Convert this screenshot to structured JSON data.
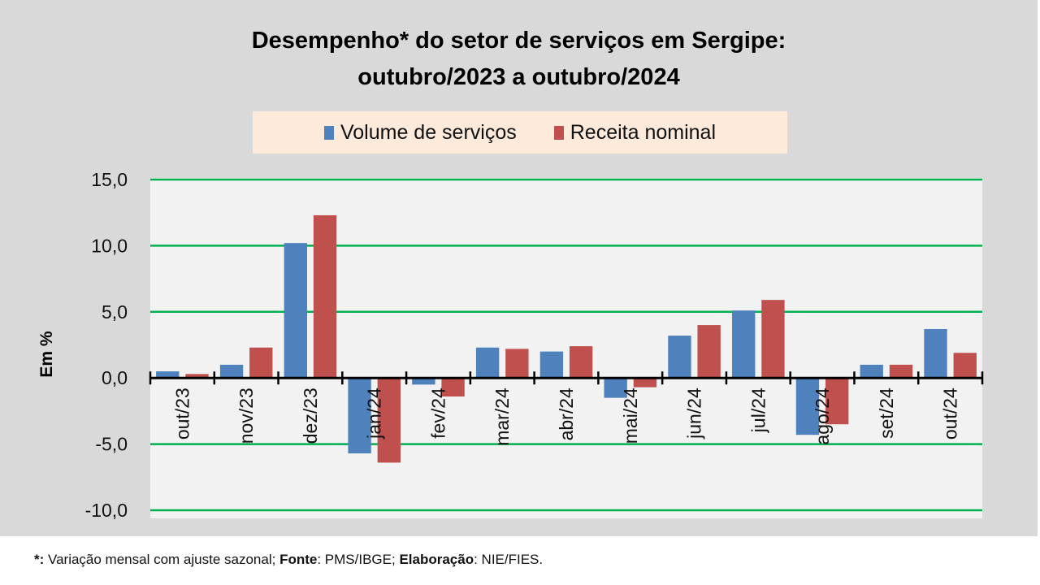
{
  "footer": {
    "prefix": "*:",
    "text1": " Variação mensal com ajuste sazonal; ",
    "fonte_label": "Fonte",
    "text2": ": PMS/IBGE; ",
    "elab_label": "Elaboração",
    "text3": ": NIE/FIES."
  },
  "chart_data": {
    "type": "bar",
    "title_line1": "Desempenho* do setor de serviços em Sergipe:",
    "title_line2": "outubro/2023 a outubro/2024",
    "xlabel": "",
    "ylabel": "Em %",
    "ylim": [
      -10,
      15
    ],
    "yticks": [
      15,
      10,
      5,
      0,
      -5,
      -10
    ],
    "ytick_labels": [
      "15,0",
      "10,0",
      "5,0",
      "0,0",
      "-5,0",
      "-10,0"
    ],
    "grid": true,
    "legend_position": "top-center",
    "categories": [
      "out/23",
      "nov/23",
      "dez/23",
      "jan/24",
      "fev/24",
      "mar/24",
      "abr/24",
      "mai/24",
      "jun/24",
      "jul/24",
      "ago/24",
      "set/24",
      "out/24"
    ],
    "series": [
      {
        "name": "Volume de serviços",
        "color": "#4f81bd",
        "values": [
          0.5,
          1.0,
          10.2,
          -5.7,
          -0.5,
          2.3,
          2.0,
          -1.5,
          3.2,
          5.1,
          -4.3,
          1.0,
          3.7
        ]
      },
      {
        "name": "Receita nominal",
        "color": "#c0504d",
        "values": [
          0.3,
          2.3,
          12.3,
          -6.4,
          -1.4,
          2.2,
          2.4,
          -0.7,
          4.0,
          5.9,
          -3.5,
          1.0,
          1.9
        ]
      }
    ],
    "gridline_color": "#00b050"
  }
}
